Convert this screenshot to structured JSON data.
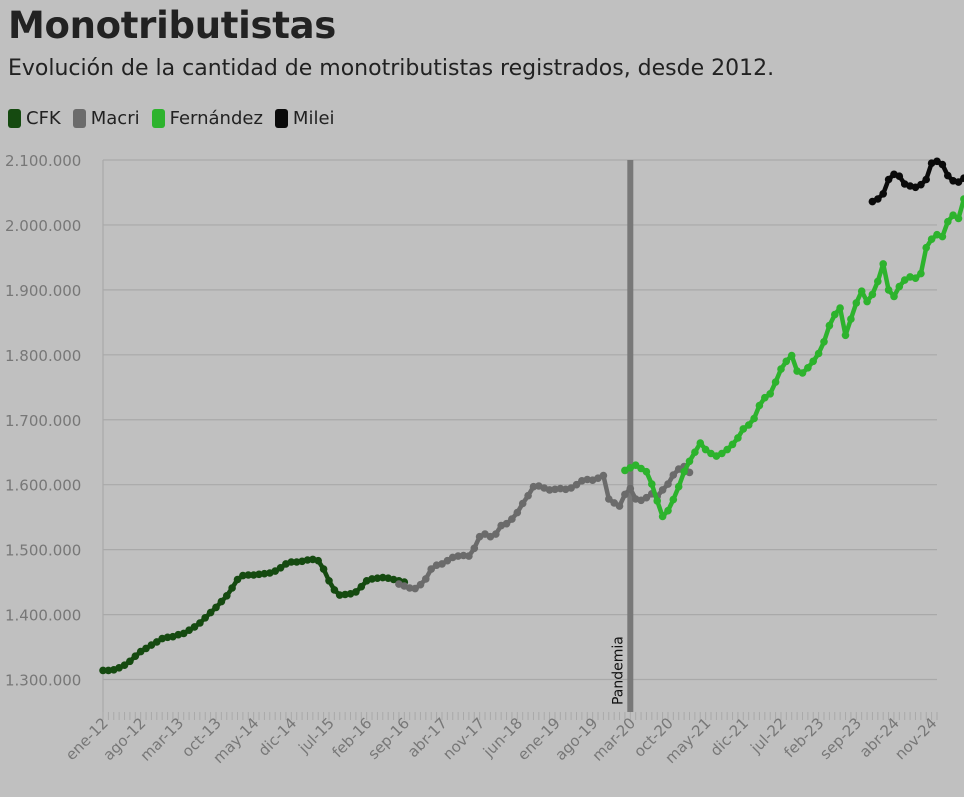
{
  "header": {
    "title": "Monotributistas",
    "subtitle": "Evolución de la cantidad de monotributistas registrados, desde 2012."
  },
  "legend": [
    {
      "label": "CFK",
      "color": "#154a10"
    },
    {
      "label": "Macri",
      "color": "#6b6b6b"
    },
    {
      "label": "Fernández",
      "color": "#2db32d"
    },
    {
      "label": "Milei",
      "color": "#0a0a0a"
    }
  ],
  "chart_data": {
    "type": "line",
    "x_unit": "month",
    "x_start": "2012-01",
    "x_end": "2024-12",
    "ylim": [
      1250000,
      2100000
    ],
    "yticks": [
      1300000,
      1400000,
      1500000,
      1600000,
      1700000,
      1800000,
      1900000,
      2000000,
      2100000
    ],
    "ytick_labels": [
      "1.300.000",
      "1.400.000",
      "1.500.000",
      "1.600.000",
      "1.700.000",
      "1.800.000",
      "1.900.000",
      "2.000.000",
      "2.100.000"
    ],
    "xtick_labels": [
      {
        "x": "2012-01",
        "label": "ene-12"
      },
      {
        "x": "2012-08",
        "label": "ago-12"
      },
      {
        "x": "2013-03",
        "label": "mar-13"
      },
      {
        "x": "2013-10",
        "label": "oct-13"
      },
      {
        "x": "2014-05",
        "label": "may-14"
      },
      {
        "x": "2014-12",
        "label": "dic-14"
      },
      {
        "x": "2015-07",
        "label": "jul-15"
      },
      {
        "x": "2016-02",
        "label": "feb-16"
      },
      {
        "x": "2016-09",
        "label": "sep-16"
      },
      {
        "x": "2017-04",
        "label": "abr-17"
      },
      {
        "x": "2017-11",
        "label": "nov-17"
      },
      {
        "x": "2018-06",
        "label": "jun-18"
      },
      {
        "x": "2019-01",
        "label": "ene-19"
      },
      {
        "x": "2019-08",
        "label": "ago-19"
      },
      {
        "x": "2020-03",
        "label": "mar-20"
      },
      {
        "x": "2020-10",
        "label": "oct-20"
      },
      {
        "x": "2021-05",
        "label": "may-21"
      },
      {
        "x": "2021-12",
        "label": "dic-21"
      },
      {
        "x": "2022-07",
        "label": "jul-22"
      },
      {
        "x": "2023-02",
        "label": "feb-23"
      },
      {
        "x": "2023-09",
        "label": "sep-23"
      },
      {
        "x": "2024-04",
        "label": "abr-24"
      },
      {
        "x": "2024-11",
        "label": "nov-24"
      }
    ],
    "annotations": [
      {
        "type": "vline",
        "x": "2020-03",
        "label": "Pandemia",
        "color": "#787878"
      }
    ],
    "grid": true,
    "legend_position": "top-left",
    "series": [
      {
        "name": "CFK",
        "color": "#154a10",
        "start": "2012-01",
        "values": [
          1314000,
          1314000,
          1315000,
          1318000,
          1322000,
          1328000,
          1336000,
          1343000,
          1348000,
          1353000,
          1358000,
          1363000,
          1365000,
          1366000,
          1369000,
          1371000,
          1376000,
          1381000,
          1387000,
          1395000,
          1403000,
          1411000,
          1420000,
          1429000,
          1441000,
          1454000,
          1460000,
          1461000,
          1461000,
          1462000,
          1463000,
          1464000,
          1467000,
          1472000,
          1478000,
          1481000,
          1481000,
          1482000,
          1484000,
          1485000,
          1483000,
          1470000,
          1452000,
          1438000,
          1430000,
          1431000,
          1432000,
          1435000,
          1443000,
          1452000,
          1455000,
          1456000,
          1457000,
          1456000,
          1454000,
          1452000,
          1450000
        ]
      },
      {
        "name": "Macri",
        "color": "#6b6b6b",
        "start": "2016-08",
        "values": [
          1447000,
          1444000,
          1441000,
          1440000,
          1446000,
          1455000,
          1470000,
          1476000,
          1478000,
          1483000,
          1488000,
          1490000,
          1491000,
          1490000,
          1502000,
          1520000,
          1524000,
          1520000,
          1524000,
          1537000,
          1540000,
          1547000,
          1557000,
          1571000,
          1583000,
          1597000,
          1598000,
          1595000,
          1592000,
          1593000,
          1594000,
          1593000,
          1595000,
          1600000,
          1606000,
          1608000,
          1607000,
          1610000,
          1614000,
          1578000,
          1572000,
          1567000,
          1585000,
          1594000,
          1578000,
          1576000,
          1580000,
          1586000,
          1582000,
          1592000,
          1601000,
          1615000,
          1624000,
          1628000,
          1619000
        ]
      },
      {
        "name": "Fernández",
        "color": "#2db32d",
        "start": "2020-02",
        "values": [
          1622000,
          1626000,
          1630000,
          1625000,
          1620000,
          1601000,
          1575000,
          1551000,
          1560000,
          1577000,
          1597000,
          1620000,
          1636000,
          1650000,
          1664000,
          1654000,
          1648000,
          1644000,
          1648000,
          1654000,
          1662000,
          1672000,
          1686000,
          1692000,
          1702000,
          1722000,
          1734000,
          1740000,
          1758000,
          1778000,
          1790000,
          1799000,
          1775000,
          1772000,
          1780000,
          1790000,
          1802000,
          1820000,
          1845000,
          1862000,
          1872000,
          1830000,
          1855000,
          1880000,
          1898000,
          1882000,
          1893000,
          1913000,
          1940000,
          1900000,
          1890000,
          1905000,
          1915000,
          1920000,
          1918000,
          1925000,
          1965000,
          1978000,
          1985000,
          1982000,
          2005000,
          2015000,
          2010000,
          2040000
        ]
      },
      {
        "name": "Milei",
        "color": "#0a0a0a",
        "start": "2023-12",
        "values": [
          2036000,
          2040000,
          2048000,
          2070000,
          2078000,
          2075000,
          2063000,
          2060000,
          2058000,
          2062000,
          2070000,
          2095000,
          2098000,
          2093000,
          2076000,
          2068000,
          2066000,
          2072000
        ]
      }
    ]
  }
}
